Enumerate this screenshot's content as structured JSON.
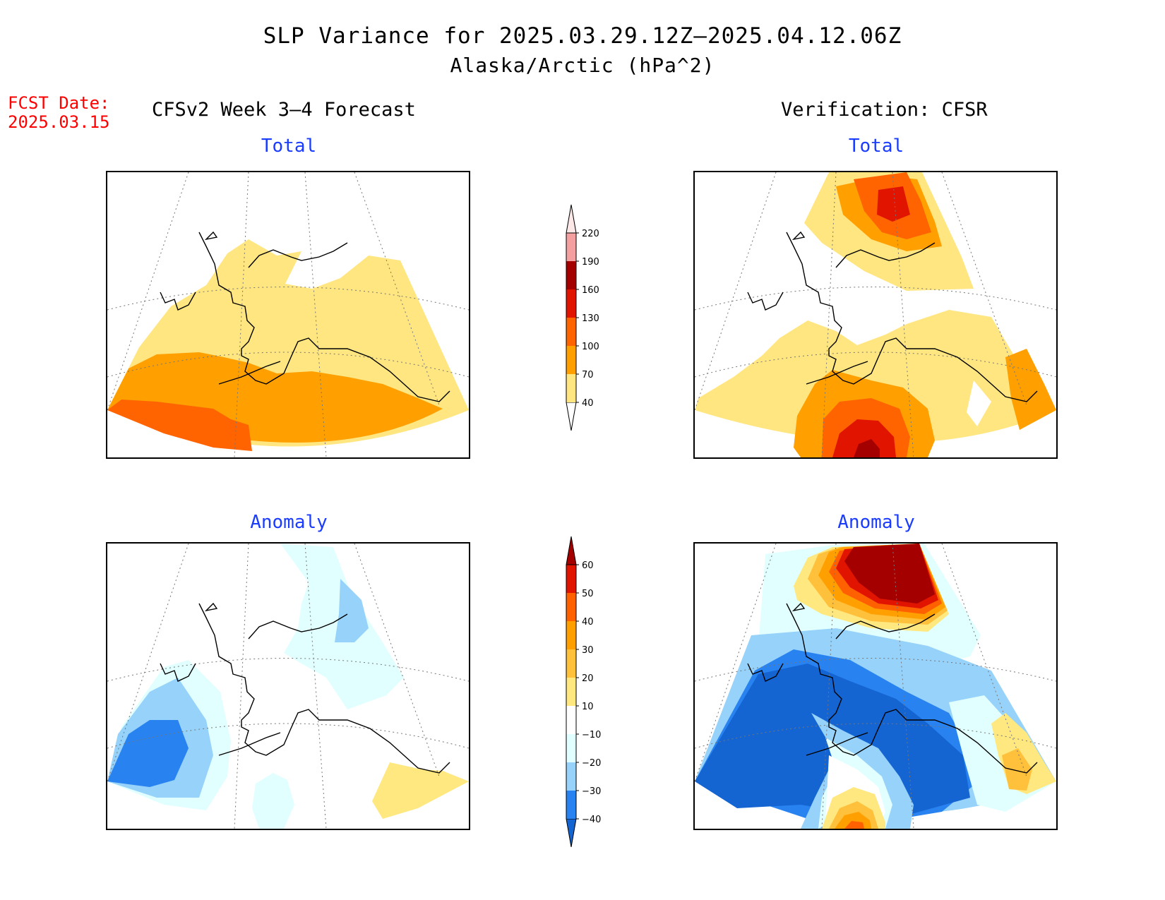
{
  "title": {
    "line1": "SLP Variance for 2025.03.29.12Z–2025.04.12.06Z",
    "line2": "Alaska/Arctic (hPa^2)"
  },
  "fcst": {
    "label": "FCST Date:",
    "date": "2025.03.15"
  },
  "headers": {
    "left": "CFSv2 Week 3–4 Forecast",
    "right": "Verification: CFSR"
  },
  "panels": {
    "forecast_total": {
      "subtitle": "Total"
    },
    "verification_total": {
      "subtitle": "Total"
    },
    "forecast_anomaly": {
      "subtitle": "Anomaly"
    },
    "verification_anomaly": {
      "subtitle": "Anomaly"
    }
  },
  "colorbars": {
    "total": {
      "levels": [
        "40",
        "70",
        "100",
        "130",
        "160",
        "190",
        "220"
      ],
      "colors": [
        "#ffe680",
        "#ff9f00",
        "#ff6400",
        "#e11400",
        "#a50000",
        "#f5a0a0",
        "#fde8e8"
      ]
    },
    "anomaly": {
      "levels": [
        "−40",
        "−30",
        "−20",
        "−10",
        "10",
        "20",
        "30",
        "40",
        "50",
        "60"
      ],
      "colors": [
        "#1464d2",
        "#2882f0",
        "#96d2fa",
        "#e1ffff",
        "#ffffff",
        "#ffe880",
        "#ffc03c",
        "#ffa000",
        "#ff6000",
        "#e11400",
        "#a50000"
      ]
    }
  }
}
